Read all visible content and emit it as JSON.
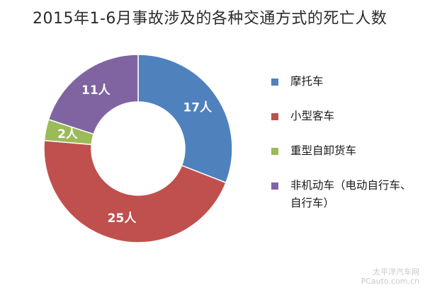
{
  "chart_data": {
    "type": "pie",
    "title": "2015年1-6月事故涉及的各种交通方式的死亡人数",
    "categories": [
      "摩托车",
      "小型客车",
      "重型自卸货车",
      "非机动车（电动自行车、自行车）"
    ],
    "values": [
      17,
      25,
      2,
      11
    ],
    "data_labels": [
      "17人",
      "25人",
      "2人",
      "11人"
    ],
    "colors": [
      "#4f81bd",
      "#c0504d",
      "#9bbb59",
      "#8064a2"
    ],
    "legend_position": "right"
  },
  "watermark": {
    "line1": "太平洋汽车网",
    "line2": "PCauto.com.cn"
  }
}
